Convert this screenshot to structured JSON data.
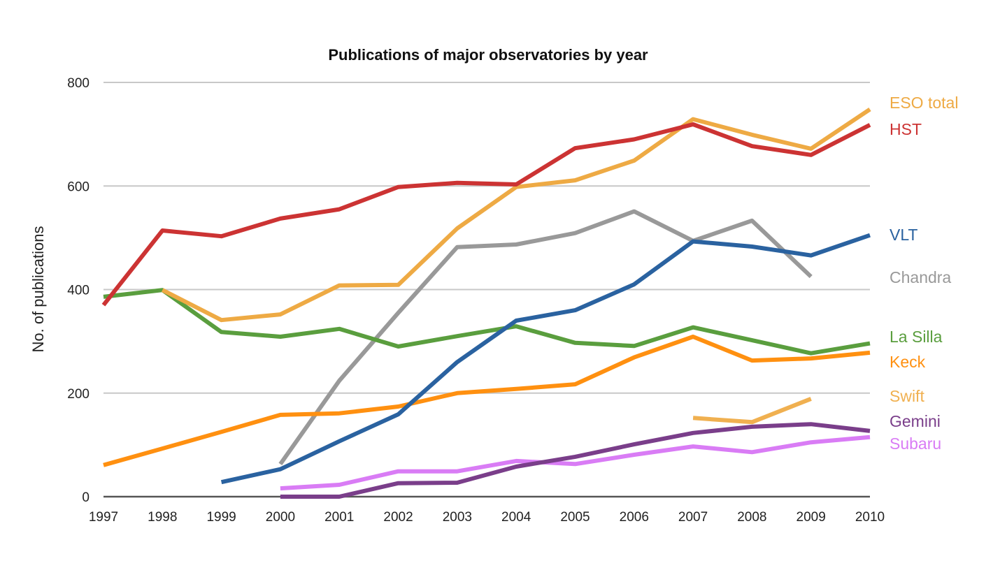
{
  "chart_data": {
    "type": "line",
    "title": "Publications of major observatories by year",
    "xlabel": "",
    "ylabel": "No. of publications",
    "x": [
      1997,
      1998,
      1999,
      2000,
      2001,
      2002,
      2003,
      2004,
      2005,
      2006,
      2007,
      2008,
      2009,
      2010
    ],
    "xticks": [
      "1997",
      "1998",
      "1999",
      "2000",
      "2001",
      "2002",
      "2003",
      "2004",
      "2005",
      "2006",
      "2007",
      "2008",
      "2009",
      "2010"
    ],
    "yticks": [
      "0",
      "200",
      "400",
      "600",
      "800"
    ],
    "ylim": [
      0,
      800
    ],
    "grid": true,
    "legend": "right, labels at line ends",
    "series": [
      {
        "name": "ESO total",
        "color": "#eeaa44",
        "values": [
          null,
          399,
          341,
          352,
          408,
          409,
          518,
          598,
          611,
          649,
          729,
          699,
          672,
          748
        ]
      },
      {
        "name": "HST",
        "color": "#cc3333",
        "values": [
          370,
          514,
          503,
          537,
          555,
          598,
          606,
          603,
          673,
          690,
          719,
          677,
          660,
          718
        ]
      },
      {
        "name": "VLT",
        "color": "#2a62a0",
        "values": [
          null,
          null,
          28,
          53,
          107,
          159,
          260,
          340,
          360,
          410,
          493,
          483,
          466,
          505
        ]
      },
      {
        "name": "Chandra",
        "color": "#999999",
        "values": [
          null,
          null,
          null,
          63,
          224,
          355,
          482,
          487,
          509,
          551,
          494,
          533,
          425,
          null
        ]
      },
      {
        "name": "La Silla",
        "color": "#5a9e3e",
        "values": [
          386,
          399,
          318,
          309,
          324,
          290,
          310,
          329,
          297,
          291,
          327,
          302,
          277,
          296
        ]
      },
      {
        "name": "Keck",
        "color": "#ff9010",
        "values": [
          61,
          93,
          125,
          158,
          161,
          174,
          200,
          208,
          217,
          269,
          309,
          263,
          267,
          278
        ]
      },
      {
        "name": "Swift",
        "color": "#f0b050",
        "values": [
          null,
          null,
          null,
          null,
          null,
          null,
          null,
          null,
          null,
          null,
          152,
          144,
          189,
          null
        ]
      },
      {
        "name": "Gemini",
        "color": "#7a3e8a",
        "values": [
          null,
          null,
          null,
          0,
          0,
          26,
          27,
          58,
          77,
          101,
          123,
          135,
          140,
          127
        ]
      },
      {
        "name": "Subaru",
        "color": "#d97cf5",
        "values": [
          null,
          null,
          null,
          16,
          23,
          49,
          49,
          69,
          63,
          81,
          97,
          86,
          105,
          115
        ]
      }
    ]
  }
}
